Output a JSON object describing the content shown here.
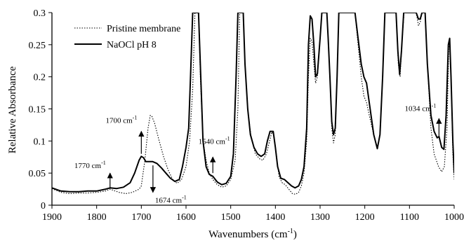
{
  "chart_data": {
    "type": "line",
    "xlabel": "Wavenumbers (cm",
    "xlabel_sup": "-1",
    "xlabel_close": ")",
    "ylabel": "Relative Absorbance",
    "xlim": [
      1900,
      1000
    ],
    "ylim": [
      0,
      0.3
    ],
    "x_reversed": true,
    "x_ticks": [
      1900,
      1800,
      1700,
      1600,
      1500,
      1400,
      1300,
      1200,
      1100,
      1000
    ],
    "y_ticks": [
      0,
      0.05,
      0.1,
      0.15,
      0.2,
      0.25,
      0.3
    ],
    "y_tick_labels": [
      "0",
      "0.05",
      "0.1",
      "0.15",
      "0.2",
      "0.25",
      "0.3"
    ],
    "legend_position": "top-left",
    "series": [
      {
        "name": "Pristine membrane",
        "style": "dotted",
        "points": [
          [
            1900,
            0.026
          ],
          [
            1880,
            0.02
          ],
          [
            1860,
            0.018
          ],
          [
            1840,
            0.019
          ],
          [
            1820,
            0.019
          ],
          [
            1800,
            0.02
          ],
          [
            1780,
            0.022
          ],
          [
            1770,
            0.025
          ],
          [
            1750,
            0.02
          ],
          [
            1735,
            0.018
          ],
          [
            1720,
            0.02
          ],
          [
            1705,
            0.025
          ],
          [
            1700,
            0.03
          ],
          [
            1692,
            0.07
          ],
          [
            1685,
            0.12
          ],
          [
            1680,
            0.14
          ],
          [
            1676,
            0.138
          ],
          [
            1670,
            0.127
          ],
          [
            1660,
            0.1
          ],
          [
            1650,
            0.075
          ],
          [
            1640,
            0.055
          ],
          [
            1630,
            0.04
          ],
          [
            1620,
            0.034
          ],
          [
            1610,
            0.04
          ],
          [
            1600,
            0.06
          ],
          [
            1592,
            0.1
          ],
          [
            1585,
            0.18
          ],
          [
            1580,
            0.3
          ],
          [
            1572,
            0.3
          ],
          [
            1568,
            0.2
          ],
          [
            1562,
            0.1
          ],
          [
            1555,
            0.07
          ],
          [
            1548,
            0.05
          ],
          [
            1540,
            0.04
          ],
          [
            1530,
            0.032
          ],
          [
            1520,
            0.028
          ],
          [
            1510,
            0.03
          ],
          [
            1500,
            0.04
          ],
          [
            1490,
            0.07
          ],
          [
            1484,
            0.15
          ],
          [
            1480,
            0.3
          ],
          [
            1472,
            0.3
          ],
          [
            1468,
            0.22
          ],
          [
            1462,
            0.15
          ],
          [
            1455,
            0.11
          ],
          [
            1445,
            0.08
          ],
          [
            1435,
            0.072
          ],
          [
            1428,
            0.07
          ],
          [
            1420,
            0.08
          ],
          [
            1413,
            0.1
          ],
          [
            1408,
            0.114
          ],
          [
            1403,
            0.108
          ],
          [
            1398,
            0.08
          ],
          [
            1392,
            0.045
          ],
          [
            1385,
            0.035
          ],
          [
            1378,
            0.032
          ],
          [
            1370,
            0.025
          ],
          [
            1362,
            0.018
          ],
          [
            1355,
            0.017
          ],
          [
            1348,
            0.02
          ],
          [
            1342,
            0.03
          ],
          [
            1336,
            0.05
          ],
          [
            1330,
            0.1
          ],
          [
            1326,
            0.2
          ],
          [
            1322,
            0.26
          ],
          [
            1318,
            0.255
          ],
          [
            1314,
            0.22
          ],
          [
            1310,
            0.19
          ],
          [
            1306,
            0.2
          ],
          [
            1300,
            0.26
          ],
          [
            1296,
            0.3
          ],
          [
            1285,
            0.3
          ],
          [
            1282,
            0.26
          ],
          [
            1278,
            0.2
          ],
          [
            1274,
            0.12
          ],
          [
            1270,
            0.097
          ],
          [
            1266,
            0.11
          ],
          [
            1262,
            0.2
          ],
          [
            1258,
            0.3
          ],
          [
            1222,
            0.3
          ],
          [
            1215,
            0.25
          ],
          [
            1208,
            0.2
          ],
          [
            1202,
            0.17
          ],
          [
            1196,
            0.16
          ],
          [
            1190,
            0.14
          ],
          [
            1180,
            0.11
          ],
          [
            1172,
            0.088
          ],
          [
            1166,
            0.11
          ],
          [
            1160,
            0.2
          ],
          [
            1155,
            0.3
          ],
          [
            1130,
            0.3
          ],
          [
            1125,
            0.22
          ],
          [
            1121,
            0.2
          ],
          [
            1117,
            0.25
          ],
          [
            1112,
            0.3
          ],
          [
            1085,
            0.3
          ],
          [
            1080,
            0.28
          ],
          [
            1076,
            0.285
          ],
          [
            1072,
            0.3
          ],
          [
            1065,
            0.3
          ],
          [
            1060,
            0.22
          ],
          [
            1052,
            0.12
          ],
          [
            1045,
            0.08
          ],
          [
            1035,
            0.06
          ],
          [
            1028,
            0.052
          ],
          [
            1022,
            0.06
          ],
          [
            1016,
            0.12
          ],
          [
            1012,
            0.25
          ],
          [
            1010,
            0.26
          ],
          [
            1007,
            0.2
          ],
          [
            1003,
            0.08
          ],
          [
            1000,
            0.04
          ]
        ]
      },
      {
        "name": "NaOCl pH 8",
        "style": "solid",
        "points": [
          [
            1900,
            0.027
          ],
          [
            1880,
            0.022
          ],
          [
            1860,
            0.021
          ],
          [
            1840,
            0.021
          ],
          [
            1820,
            0.022
          ],
          [
            1800,
            0.022
          ],
          [
            1780,
            0.025
          ],
          [
            1770,
            0.027
          ],
          [
            1755,
            0.026
          ],
          [
            1740,
            0.028
          ],
          [
            1725,
            0.035
          ],
          [
            1715,
            0.05
          ],
          [
            1705,
            0.07
          ],
          [
            1700,
            0.076
          ],
          [
            1695,
            0.074
          ],
          [
            1690,
            0.068
          ],
          [
            1685,
            0.068
          ],
          [
            1675,
            0.068
          ],
          [
            1665,
            0.065
          ],
          [
            1655,
            0.058
          ],
          [
            1645,
            0.05
          ],
          [
            1635,
            0.042
          ],
          [
            1625,
            0.037
          ],
          [
            1615,
            0.04
          ],
          [
            1608,
            0.06
          ],
          [
            1600,
            0.09
          ],
          [
            1594,
            0.12
          ],
          [
            1590,
            0.2
          ],
          [
            1585,
            0.3
          ],
          [
            1572,
            0.3
          ],
          [
            1567,
            0.2
          ],
          [
            1562,
            0.1
          ],
          [
            1555,
            0.06
          ],
          [
            1548,
            0.048
          ],
          [
            1540,
            0.045
          ],
          [
            1530,
            0.036
          ],
          [
            1520,
            0.032
          ],
          [
            1510,
            0.034
          ],
          [
            1500,
            0.045
          ],
          [
            1494,
            0.08
          ],
          [
            1488,
            0.2
          ],
          [
            1484,
            0.3
          ],
          [
            1472,
            0.3
          ],
          [
            1468,
            0.22
          ],
          [
            1462,
            0.15
          ],
          [
            1456,
            0.11
          ],
          [
            1448,
            0.09
          ],
          [
            1440,
            0.08
          ],
          [
            1432,
            0.076
          ],
          [
            1424,
            0.08
          ],
          [
            1418,
            0.1
          ],
          [
            1412,
            0.115
          ],
          [
            1405,
            0.115
          ],
          [
            1400,
            0.09
          ],
          [
            1395,
            0.06
          ],
          [
            1388,
            0.042
          ],
          [
            1380,
            0.04
          ],
          [
            1372,
            0.035
          ],
          [
            1364,
            0.03
          ],
          [
            1356,
            0.027
          ],
          [
            1348,
            0.03
          ],
          [
            1342,
            0.04
          ],
          [
            1336,
            0.06
          ],
          [
            1330,
            0.12
          ],
          [
            1326,
            0.25
          ],
          [
            1322,
            0.295
          ],
          [
            1318,
            0.29
          ],
          [
            1314,
            0.25
          ],
          [
            1310,
            0.2
          ],
          [
            1306,
            0.205
          ],
          [
            1300,
            0.26
          ],
          [
            1296,
            0.3
          ],
          [
            1285,
            0.3
          ],
          [
            1282,
            0.26
          ],
          [
            1278,
            0.2
          ],
          [
            1274,
            0.13
          ],
          [
            1270,
            0.11
          ],
          [
            1266,
            0.12
          ],
          [
            1262,
            0.2
          ],
          [
            1258,
            0.3
          ],
          [
            1222,
            0.3
          ],
          [
            1215,
            0.26
          ],
          [
            1208,
            0.22
          ],
          [
            1202,
            0.2
          ],
          [
            1196,
            0.19
          ],
          [
            1190,
            0.16
          ],
          [
            1180,
            0.11
          ],
          [
            1172,
            0.088
          ],
          [
            1166,
            0.11
          ],
          [
            1160,
            0.2
          ],
          [
            1155,
            0.3
          ],
          [
            1130,
            0.3
          ],
          [
            1126,
            0.24
          ],
          [
            1122,
            0.204
          ],
          [
            1118,
            0.24
          ],
          [
            1113,
            0.3
          ],
          [
            1085,
            0.3
          ],
          [
            1080,
            0.29
          ],
          [
            1076,
            0.29
          ],
          [
            1072,
            0.3
          ],
          [
            1065,
            0.3
          ],
          [
            1060,
            0.22
          ],
          [
            1052,
            0.14
          ],
          [
            1045,
            0.115
          ],
          [
            1038,
            0.105
          ],
          [
            1034,
            0.107
          ],
          [
            1028,
            0.09
          ],
          [
            1023,
            0.087
          ],
          [
            1018,
            0.14
          ],
          [
            1013,
            0.25
          ],
          [
            1010,
            0.26
          ],
          [
            1007,
            0.2
          ],
          [
            1003,
            0.1
          ],
          [
            1000,
            0.05
          ]
        ]
      }
    ],
    "annotations": [
      {
        "text": "1770 cm",
        "sup": "-1",
        "x": 1770,
        "y_from": 0.027,
        "y_to": 0.05
      },
      {
        "text": "1700 cm",
        "sup": "-1",
        "x": 1700,
        "y_from": 0.08,
        "y_to": 0.115
      },
      {
        "text": "1674 cm",
        "sup": "-1",
        "x": 1674,
        "y_from": 0.062,
        "y_to": 0.02
      },
      {
        "text": "1540 cm",
        "sup": "-1",
        "x": 1540,
        "y_from": 0.05,
        "y_to": 0.075
      },
      {
        "text": "1034 cm",
        "sup": "-1",
        "x": 1034,
        "y_from": 0.108,
        "y_to": 0.135
      }
    ]
  }
}
